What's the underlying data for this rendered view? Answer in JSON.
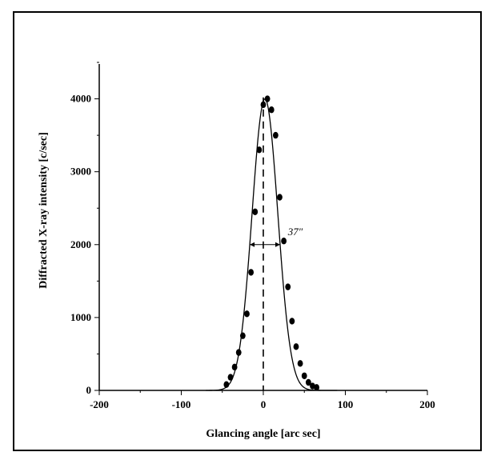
{
  "chart_data": {
    "type": "scatter",
    "title": "",
    "xlabel": "Glancing angle [arc sec]",
    "ylabel": "Diffracted X-ray intensity [c/sec]",
    "xlim": [
      -200,
      200
    ],
    "ylim": [
      0,
      4500
    ],
    "x_ticks": [
      -200,
      -100,
      0,
      100,
      200
    ],
    "y_ticks": [
      0,
      1000,
      2000,
      3000,
      4000
    ],
    "grid": false,
    "legend": "none",
    "series": [
      {
        "kind": "points",
        "x": [
          -45,
          -40,
          -35,
          -30,
          -25,
          -20,
          -15,
          -10,
          -5,
          0,
          5,
          10,
          15,
          20,
          25,
          30,
          35,
          40,
          45,
          50,
          55,
          60,
          65
        ],
        "y": [
          80,
          180,
          320,
          520,
          750,
          1050,
          1620,
          2450,
          3300,
          3920,
          4000,
          3850,
          3500,
          2650,
          2050,
          1420,
          950,
          600,
          370,
          200,
          110,
          60,
          40
        ]
      },
      {
        "kind": "fit-line",
        "peak_center": 2,
        "peak_height": 4000,
        "fwhm": 37
      }
    ],
    "annotations": [
      {
        "text": "37″",
        "x": 30,
        "y": 2130
      }
    ],
    "reference_line": {
      "x": 0,
      "style": "dashed"
    },
    "fwhm_marker": {
      "from": -16.5,
      "to": 20.5,
      "y": 2000
    }
  }
}
